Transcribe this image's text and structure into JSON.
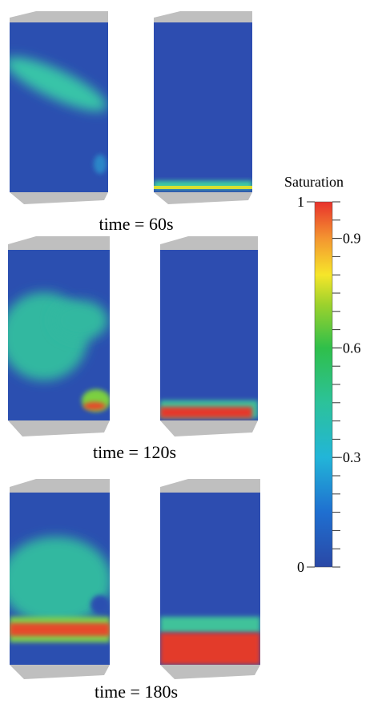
{
  "panels": [
    {
      "caption": "time = 60s"
    },
    {
      "caption": "time = 120s"
    },
    {
      "caption": "time = 180s"
    }
  ],
  "colorbar": {
    "title": "Saturation",
    "lim": [
      0,
      1
    ],
    "ticks": [
      0,
      0.3,
      0.6,
      0.9,
      1
    ],
    "minor_ticks": [
      0,
      0.05,
      0.1,
      0.15,
      0.2,
      0.25,
      0.3,
      0.35,
      0.4,
      0.45,
      0.5,
      0.55,
      0.6,
      0.65,
      0.7,
      0.75,
      0.8,
      0.85,
      0.9,
      0.95,
      1
    ]
  }
}
